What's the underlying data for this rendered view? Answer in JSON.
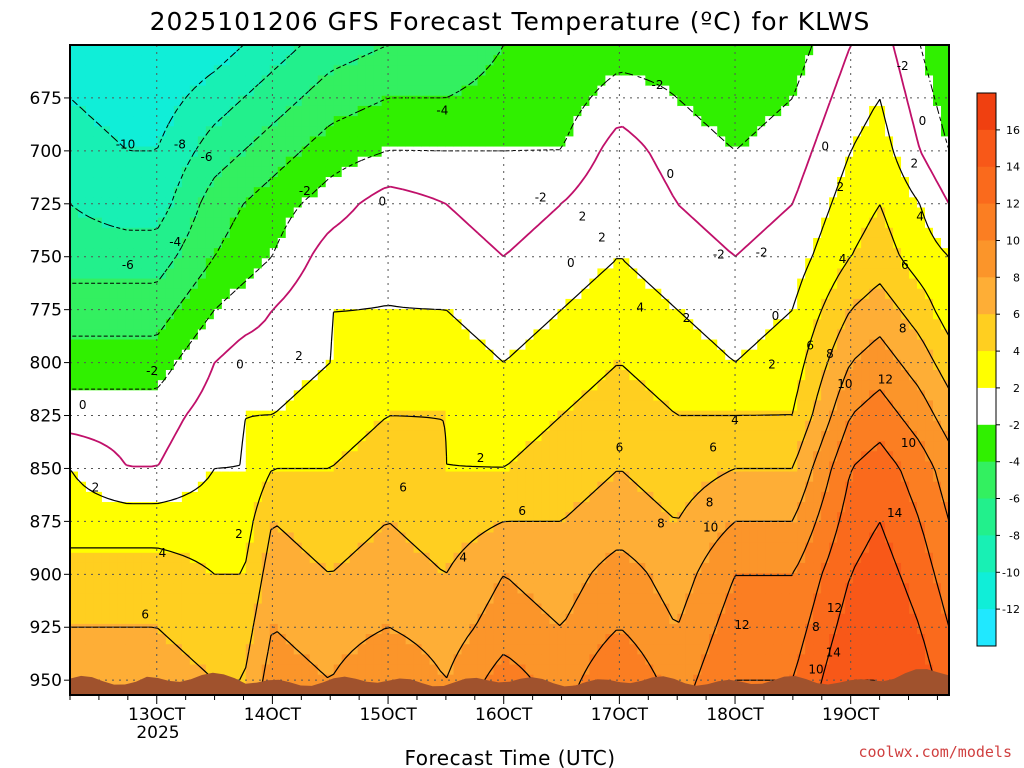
{
  "chart_data": {
    "type": "heatmap",
    "title": "2025101206 GFS Forecast Temperature (ºC) for KLWS",
    "xlabel": "Forecast Time (UTC)",
    "ylabel": "",
    "credit": "coolwx.com/models",
    "x_ticks": [
      "13OCT",
      "14OCT",
      "15OCT",
      "16OCT",
      "17OCT",
      "18OCT",
      "19OCT"
    ],
    "x_year_label": "2025",
    "x_range_days": [
      12.25,
      19.85
    ],
    "y_ticks": [
      675,
      700,
      725,
      750,
      775,
      800,
      825,
      850,
      875,
      900,
      925,
      950
    ],
    "y_range_hpa": [
      650,
      957
    ],
    "colorbar": {
      "tick_labels": [
        "16",
        "14",
        "12",
        "10",
        "8",
        "6",
        "4",
        "2",
        "-2",
        "-4",
        "-6",
        "-8",
        "-10",
        "-12"
      ],
      "bands": [
        {
          "min": 16,
          "max": 18,
          "color": "#f04010"
        },
        {
          "min": 14,
          "max": 16,
          "color": "#f85818"
        },
        {
          "min": 12,
          "max": 14,
          "color": "#fa6a1c"
        },
        {
          "min": 10,
          "max": 12,
          "color": "#fb7e22"
        },
        {
          "min": 8,
          "max": 10,
          "color": "#fb952a"
        },
        {
          "min": 6,
          "max": 8,
          "color": "#feae36"
        },
        {
          "min": 4,
          "max": 6,
          "color": "#ffcf20"
        },
        {
          "min": 2,
          "max": 4,
          "color": "#ffff00"
        },
        {
          "min": -2,
          "max": 2,
          "color": "#ffffff"
        },
        {
          "min": -4,
          "max": -2,
          "color": "#30f000"
        },
        {
          "min": -6,
          "max": -4,
          "color": "#33f060"
        },
        {
          "min": -8,
          "max": -6,
          "color": "#22f08c"
        },
        {
          "min": -10,
          "max": -8,
          "color": "#18f0b4"
        },
        {
          "min": -12,
          "max": -10,
          "color": "#10eed8"
        },
        {
          "min": -14,
          "max": -12,
          "color": "#20e8ff"
        }
      ]
    },
    "ground_color": "#a0522d",
    "freezing_line_color": "#c0106a",
    "temperature_profiles": [
      {
        "day": 12.25,
        "temps_at_ticks": [
          -10,
          -9,
          -8,
          -7,
          -5,
          -3,
          -1,
          2,
          3,
          5,
          6,
          7
        ]
      },
      {
        "day": 12.75,
        "temps_at_ticks": [
          -11,
          -10,
          -9,
          -7,
          -5,
          -3,
          -1,
          0,
          3,
          5,
          6,
          7
        ]
      },
      {
        "day": 13.0,
        "temps_at_ticks": [
          -11,
          -10,
          -9,
          -7,
          -5,
          -3,
          -1,
          0,
          3,
          5,
          6,
          7
        ]
      },
      {
        "day": 13.5,
        "temps_at_ticks": [
          -9,
          -7,
          -5,
          -4,
          -2,
          0,
          1,
          2,
          3,
          4,
          5,
          6
        ]
      },
      {
        "day": 13.75,
        "temps_at_ticks": [
          -8,
          -6,
          -4,
          -3,
          -1,
          1,
          2,
          2,
          3,
          4,
          5,
          6
        ]
      },
      {
        "day": 14.0,
        "temps_at_ticks": [
          -7,
          -5,
          -3,
          -2,
          0,
          1,
          2,
          4,
          6,
          7,
          8,
          9
        ]
      },
      {
        "day": 14.5,
        "temps_at_ticks": [
          -5,
          -3,
          -1,
          1,
          2,
          2,
          3,
          4,
          5,
          6,
          7,
          8
        ]
      },
      {
        "day": 15.0,
        "temps_at_ticks": [
          -4,
          -2,
          1,
          2,
          2,
          3,
          4,
          5,
          6,
          7,
          8,
          10
        ]
      },
      {
        "day": 15.5,
        "temps_at_ticks": [
          -4,
          -2,
          0,
          1,
          2,
          3,
          4,
          4,
          5,
          6,
          7,
          8
        ]
      },
      {
        "day": 16.0,
        "temps_at_ticks": [
          -3,
          -2,
          -1,
          0,
          1,
          2,
          3,
          4,
          6,
          8,
          9,
          11
        ]
      },
      {
        "day": 16.5,
        "temps_at_ticks": [
          -3,
          -2,
          0,
          1,
          2,
          3,
          4,
          5,
          6,
          7,
          8,
          9
        ]
      },
      {
        "day": 17.0,
        "temps_at_ticks": [
          -1,
          1,
          2,
          2,
          3,
          4,
          5,
          6,
          7,
          9,
          10,
          12
        ]
      },
      {
        "day": 17.5,
        "temps_at_ticks": [
          -2,
          -1,
          0,
          1,
          2,
          3,
          4,
          5,
          6,
          7,
          8,
          9
        ]
      },
      {
        "day": 18.0,
        "temps_at_ticks": [
          -3,
          -2,
          -1,
          0,
          1,
          2,
          4,
          6,
          8,
          10,
          11,
          12
        ]
      },
      {
        "day": 18.5,
        "temps_at_ticks": [
          -2,
          -1,
          0,
          1,
          2,
          3,
          4,
          6,
          8,
          10,
          11,
          12
        ]
      },
      {
        "day": 19.0,
        "temps_at_ticks": [
          1,
          2,
          3,
          4,
          6,
          8,
          10,
          12,
          13,
          14,
          15,
          16
        ]
      },
      {
        "day": 19.25,
        "temps_at_ticks": [
          2,
          3,
          4,
          5,
          7,
          9,
          11,
          13,
          14,
          15,
          16,
          16
        ]
      },
      {
        "day": 19.6,
        "temps_at_ticks": [
          -1,
          0,
          2,
          3,
          5,
          7,
          9,
          11,
          12,
          13,
          14,
          15
        ]
      },
      {
        "day": 19.85,
        "temps_at_ticks": [
          -3,
          -2,
          0,
          2,
          3,
          5,
          7,
          9,
          10,
          11,
          12,
          13
        ]
      }
    ],
    "contour_labels": [
      {
        "text": "-10",
        "day": 12.73,
        "hpa": 697
      },
      {
        "text": "-8",
        "day": 13.2,
        "hpa": 697
      },
      {
        "text": "-6",
        "day": 13.43,
        "hpa": 703
      },
      {
        "text": "-6",
        "day": 12.75,
        "hpa": 754
      },
      {
        "text": "-4",
        "day": 13.16,
        "hpa": 743
      },
      {
        "text": "-4",
        "day": 15.47,
        "hpa": 681
      },
      {
        "text": "-2",
        "day": 14.28,
        "hpa": 719
      },
      {
        "text": "-2",
        "day": 12.96,
        "hpa": 804
      },
      {
        "text": "-2",
        "day": 16.32,
        "hpa": 722
      },
      {
        "text": "-2",
        "day": 17.33,
        "hpa": 669
      },
      {
        "text": "-2",
        "day": 17.86,
        "hpa": 749
      },
      {
        "text": "-2",
        "day": 18.23,
        "hpa": 748
      },
      {
        "text": "-2",
        "day": 19.45,
        "hpa": 660
      },
      {
        "text": "0",
        "day": 12.36,
        "hpa": 820
      },
      {
        "text": "0",
        "day": 13.72,
        "hpa": 801
      },
      {
        "text": "0",
        "day": 14.95,
        "hpa": 724
      },
      {
        "text": "0",
        "day": 16.58,
        "hpa": 753
      },
      {
        "text": "0",
        "day": 17.44,
        "hpa": 711
      },
      {
        "text": "0",
        "day": 18.35,
        "hpa": 778
      },
      {
        "text": "0",
        "day": 18.78,
        "hpa": 698
      },
      {
        "text": "0",
        "day": 19.62,
        "hpa": 686
      },
      {
        "text": "2",
        "day": 12.47,
        "hpa": 859
      },
      {
        "text": "2",
        "day": 13.71,
        "hpa": 881
      },
      {
        "text": "2",
        "day": 14.23,
        "hpa": 797
      },
      {
        "text": "2",
        "day": 15.8,
        "hpa": 845
      },
      {
        "text": "2",
        "day": 16.68,
        "hpa": 731
      },
      {
        "text": "2",
        "day": 16.85,
        "hpa": 741
      },
      {
        "text": "2",
        "day": 17.58,
        "hpa": 779
      },
      {
        "text": "2",
        "day": 18.32,
        "hpa": 801
      },
      {
        "text": "2",
        "day": 18.91,
        "hpa": 717
      },
      {
        "text": "2",
        "day": 19.55,
        "hpa": 706
      },
      {
        "text": "4",
        "day": 13.05,
        "hpa": 890
      },
      {
        "text": "4",
        "day": 15.65,
        "hpa": 892
      },
      {
        "text": "4",
        "day": 17.18,
        "hpa": 774
      },
      {
        "text": "4",
        "day": 18.0,
        "hpa": 827
      },
      {
        "text": "4",
        "day": 18.93,
        "hpa": 751
      },
      {
        "text": "4",
        "day": 19.6,
        "hpa": 731
      },
      {
        "text": "6",
        "day": 12.9,
        "hpa": 919
      },
      {
        "text": "6",
        "day": 15.13,
        "hpa": 859
      },
      {
        "text": "6",
        "day": 16.16,
        "hpa": 870
      },
      {
        "text": "6",
        "day": 17.0,
        "hpa": 840
      },
      {
        "text": "6",
        "day": 17.81,
        "hpa": 840
      },
      {
        "text": "6",
        "day": 18.65,
        "hpa": 792
      },
      {
        "text": "6",
        "day": 19.47,
        "hpa": 754
      },
      {
        "text": "8",
        "day": 17.36,
        "hpa": 876
      },
      {
        "text": "8",
        "day": 17.78,
        "hpa": 866
      },
      {
        "text": "8",
        "day": 18.82,
        "hpa": 796
      },
      {
        "text": "8",
        "day": 19.45,
        "hpa": 784
      },
      {
        "text": "8",
        "day": 18.7,
        "hpa": 925
      },
      {
        "text": "10",
        "day": 17.79,
        "hpa": 878
      },
      {
        "text": "10",
        "day": 18.95,
        "hpa": 810
      },
      {
        "text": "10",
        "day": 19.5,
        "hpa": 838
      },
      {
        "text": "10",
        "day": 18.7,
        "hpa": 945
      },
      {
        "text": "12",
        "day": 18.06,
        "hpa": 924
      },
      {
        "text": "12",
        "day": 19.3,
        "hpa": 808
      },
      {
        "text": "12",
        "day": 18.86,
        "hpa": 916
      },
      {
        "text": "14",
        "day": 19.38,
        "hpa": 871
      },
      {
        "text": "14",
        "day": 18.85,
        "hpa": 937
      }
    ]
  }
}
